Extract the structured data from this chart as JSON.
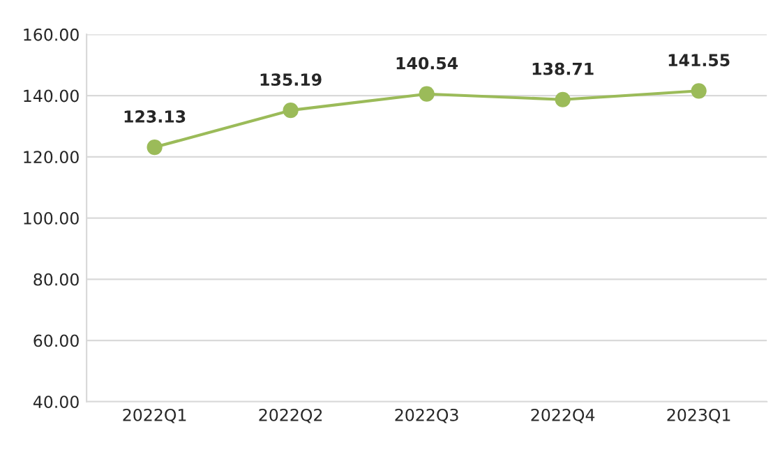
{
  "chart_data": {
    "type": "line",
    "categories": [
      "2022Q1",
      "2022Q2",
      "2022Q3",
      "2022Q4",
      "2023Q1"
    ],
    "series": [
      {
        "color": "#9bbb59",
        "values": [
          123.13,
          135.19,
          140.54,
          138.71,
          141.55
        ]
      }
    ],
    "ylim": [
      40,
      160
    ],
    "yticks": [
      {
        "value": 40,
        "label": "40.00"
      },
      {
        "value": 60,
        "label": "60.00"
      },
      {
        "value": 80,
        "label": "80.00"
      },
      {
        "value": 100,
        "label": "100.00"
      },
      {
        "value": 120,
        "label": "120.00"
      },
      {
        "value": 140,
        "label": "140.00"
      },
      {
        "value": 160,
        "label": "160.00"
      }
    ],
    "grid": "y",
    "marker": "circle",
    "line_style": "solid",
    "data_labels": true
  }
}
